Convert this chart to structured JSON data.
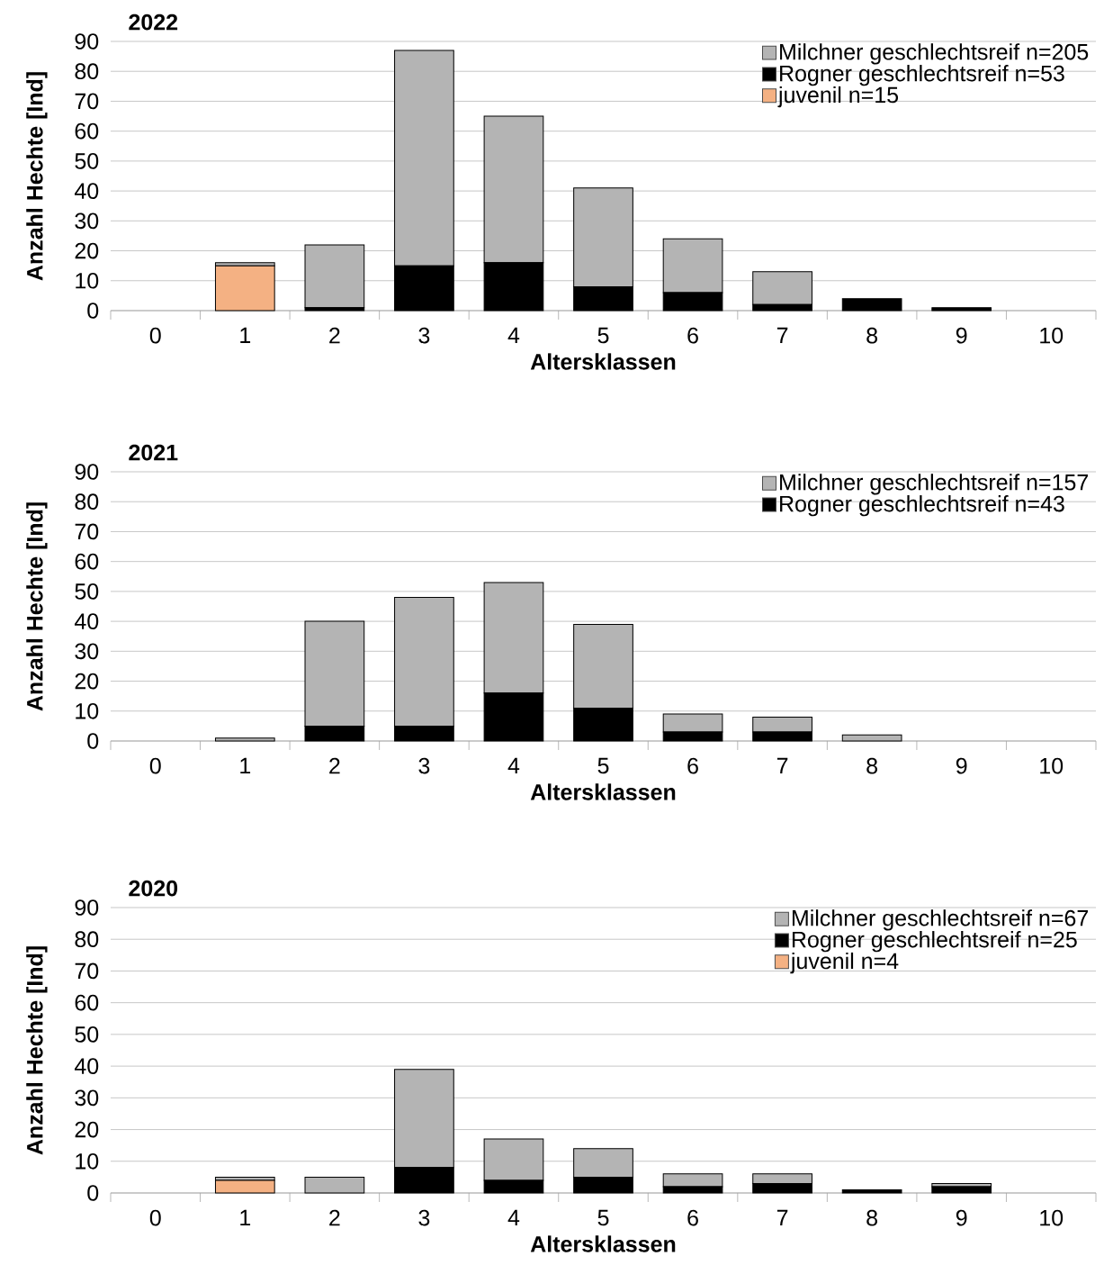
{
  "chart_data": [
    {
      "type": "bar",
      "stacked": true,
      "title": "2022",
      "xlabel": "Altersklassen",
      "ylabel": "Anzahl Hechte [Ind]",
      "categories": [
        "0",
        "1",
        "2",
        "3",
        "4",
        "5",
        "6",
        "7",
        "8",
        "9",
        "10"
      ],
      "series": [
        {
          "name": "juvenil n=15",
          "color": "#f4b183",
          "values": [
            0,
            15,
            0,
            0,
            0,
            0,
            0,
            0,
            0,
            0,
            0
          ]
        },
        {
          "name": "Rogner geschlechtsreif n=53",
          "color": "#000000",
          "values": [
            0,
            0,
            1,
            15,
            16,
            8,
            6,
            2,
            4,
            1,
            0
          ]
        },
        {
          "name": "Milchner geschlechtsreif n=205",
          "color": "#b4b4b4",
          "values": [
            0,
            1,
            21,
            72,
            49,
            33,
            18,
            11,
            0,
            0,
            0
          ]
        }
      ],
      "ylim": [
        0,
        90
      ],
      "yticks": [
        0,
        10,
        20,
        30,
        40,
        50,
        60,
        70,
        80,
        90
      ],
      "grid": "y",
      "legend": "top right"
    },
    {
      "type": "bar",
      "stacked": true,
      "title": "2021",
      "xlabel": "Altersklassen",
      "ylabel": "Anzahl Hechte [Ind]",
      "categories": [
        "0",
        "1",
        "2",
        "3",
        "4",
        "5",
        "6",
        "7",
        "8",
        "9",
        "10"
      ],
      "series": [
        {
          "name": "Rogner geschlechtsreif n=43",
          "color": "#000000",
          "values": [
            0,
            0,
            5,
            5,
            16,
            11,
            3,
            3,
            0,
            0,
            0
          ]
        },
        {
          "name": "Milchner geschlechtsreif n=157",
          "color": "#b4b4b4",
          "values": [
            0,
            1,
            35,
            43,
            37,
            28,
            6,
            5,
            2,
            0,
            0
          ]
        }
      ],
      "ylim": [
        0,
        90
      ],
      "yticks": [
        0,
        10,
        20,
        30,
        40,
        50,
        60,
        70,
        80,
        90
      ],
      "grid": "y",
      "legend": "top right"
    },
    {
      "type": "bar",
      "stacked": true,
      "title": "2020",
      "xlabel": "Altersklassen",
      "ylabel": "Anzahl Hechte [Ind]",
      "categories": [
        "0",
        "1",
        "2",
        "3",
        "4",
        "5",
        "6",
        "7",
        "8",
        "9",
        "10"
      ],
      "series": [
        {
          "name": "juvenil n=4",
          "color": "#f4b183",
          "values": [
            0,
            4,
            0,
            0,
            0,
            0,
            0,
            0,
            0,
            0,
            0
          ]
        },
        {
          "name": "Rogner geschlechtsreif n=25",
          "color": "#000000",
          "values": [
            0,
            0,
            0,
            8,
            4,
            5,
            2,
            3,
            1,
            2,
            0
          ]
        },
        {
          "name": "Milchner geschlechtsreif n=67",
          "color": "#b4b4b4",
          "values": [
            0,
            1,
            5,
            31,
            13,
            9,
            4,
            3,
            0,
            1,
            0
          ]
        }
      ],
      "ylim": [
        0,
        90
      ],
      "yticks": [
        0,
        10,
        20,
        30,
        40,
        50,
        60,
        70,
        80,
        90
      ],
      "grid": "y",
      "legend": "top right"
    }
  ]
}
